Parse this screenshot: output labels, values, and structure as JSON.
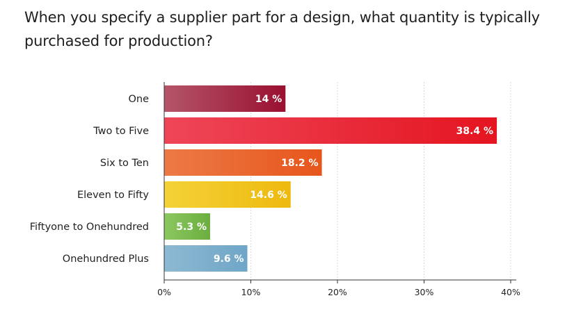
{
  "chart_data": {
    "type": "bar",
    "orientation": "horizontal",
    "title": "When you specify a supplier part for a design, what quantity is typically purchased for production?",
    "categories": [
      "One",
      "Two to Five",
      "Six to Ten",
      "Eleven to Fifty",
      "Fiftyone to Onehundred",
      "Onehundred Plus"
    ],
    "values": [
      14,
      38.4,
      18.2,
      14.6,
      5.3,
      9.6
    ],
    "data_labels": [
      "14 %",
      "38.4 %",
      "18.2 %",
      "14.6 %",
      "5.3 %",
      "9.6 %"
    ],
    "xlim": [
      0,
      40
    ],
    "x_ticks": [
      0,
      10,
      20,
      30,
      40
    ],
    "x_tick_labels": [
      "0%",
      "10%",
      "20%",
      "30%",
      "40%"
    ],
    "grid": "vertical dashed",
    "colors": [
      [
        "#b45569",
        "#9a1030"
      ],
      [
        "#ee4658",
        "#e41520"
      ],
      [
        "#ec7a46",
        "#e7561c"
      ],
      [
        "#f4d238",
        "#eeb90e"
      ],
      [
        "#8cc860",
        "#6bae3f"
      ],
      [
        "#8db9d2",
        "#6fa6c7"
      ]
    ],
    "label_color": "#ffffff"
  }
}
